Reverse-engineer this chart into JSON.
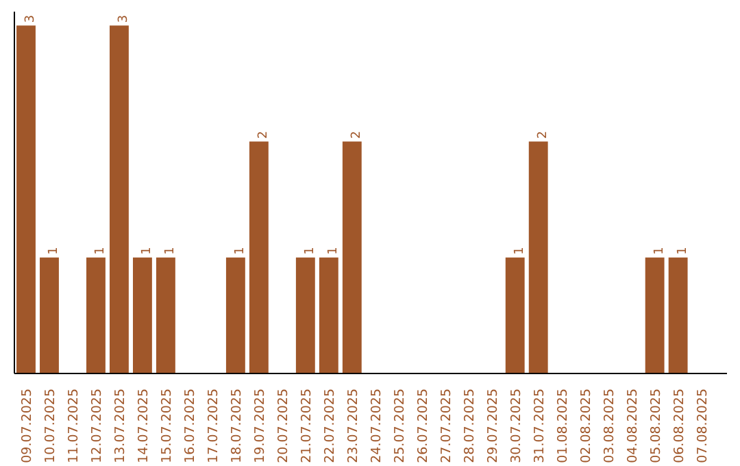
{
  "chart_data": {
    "type": "bar",
    "categories": [
      "09.07.2025",
      "10.07.2025",
      "11.07.2025",
      "12.07.2025",
      "13.07.2025",
      "14.07.2025",
      "15.07.2025",
      "16.07.2025",
      "17.07.2025",
      "18.07.2025",
      "19.07.2025",
      "20.07.2025",
      "21.07.2025",
      "22.07.2025",
      "23.07.2025",
      "24.07.2025",
      "25.07.2025",
      "26.07.2025",
      "27.07.2025",
      "28.07.2025",
      "29.07.2025",
      "30.07.2025",
      "31.07.2025",
      "01.08.2025",
      "02.08.2025",
      "03.08.2025",
      "04.08.2025",
      "05.08.2025",
      "06.08.2025",
      "07.08.2025"
    ],
    "values": [
      3,
      1,
      0,
      1,
      3,
      1,
      1,
      0,
      0,
      1,
      2,
      0,
      1,
      1,
      2,
      0,
      0,
      0,
      0,
      0,
      0,
      1,
      2,
      0,
      0,
      0,
      0,
      1,
      1,
      0
    ],
    "value_labels": [
      "3",
      "1",
      null,
      "1",
      "3",
      "1",
      "1",
      null,
      null,
      "1",
      "2",
      null,
      "1",
      "1",
      "2",
      null,
      null,
      null,
      null,
      null,
      null,
      "1",
      "2",
      null,
      null,
      null,
      null,
      "1",
      "1",
      null
    ],
    "color": "#a0572a",
    "grid": false
  }
}
